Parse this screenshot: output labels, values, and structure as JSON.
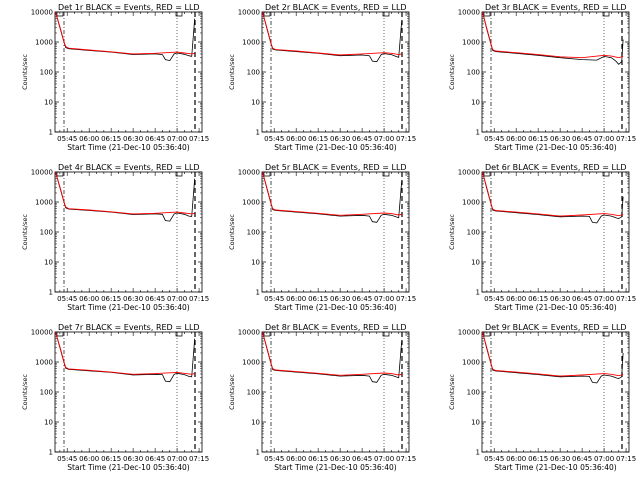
{
  "chart_data": [
    {
      "type": "line",
      "title": "Det 1r BLACK = Events, RED = LLD",
      "ylabel": "Counts/sec",
      "xlabel": "Start Time (21-Dec-10 05:36:40)",
      "yscale": "log",
      "ylim": [
        1,
        10000
      ],
      "xticklabels": [
        "05:45",
        "06:00",
        "06:15",
        "06:30",
        "06:45",
        "07:00",
        "07:15"
      ],
      "yticklabels": [
        "1",
        "10",
        "100",
        "1000",
        "10000"
      ],
      "series": [
        {
          "color": "#000000",
          "x": [
            "05:37",
            "05:40",
            "05:43",
            "05:44",
            "05:46",
            "06:00",
            "06:15",
            "06:30",
            "06:45",
            "06:50",
            "06:52",
            "06:55",
            "06:58",
            "07:00",
            "07:05",
            "07:08",
            "07:10",
            "07:12"
          ],
          "y": [
            10000,
            3000,
            900,
            650,
            600,
            520,
            460,
            380,
            400,
            380,
            260,
            240,
            400,
            430,
            390,
            350,
            330,
            6000
          ]
        },
        {
          "color": "#ff0000",
          "x": [
            "05:37",
            "05:40",
            "05:43",
            "05:44",
            "05:46",
            "06:00",
            "06:15",
            "06:30",
            "06:45",
            "07:00",
            "07:05",
            "07:10",
            "07:12"
          ],
          "y": [
            10000,
            3200,
            950,
            700,
            620,
            540,
            470,
            400,
            420,
            460,
            430,
            400,
            420
          ]
        }
      ]
    },
    {
      "type": "line",
      "title": "Det 2r BLACK = Events, RED = LLD",
      "ylabel": "Counts/sec",
      "xlabel": "Start Time (21-Dec-10 05:36:40)",
      "yscale": "log",
      "ylim": [
        1,
        10000
      ],
      "xticklabels": [
        "05:45",
        "06:00",
        "06:15",
        "06:30",
        "06:45",
        "07:00",
        "07:15"
      ],
      "yticklabels": [
        "1",
        "10",
        "100",
        "1000",
        "10000"
      ],
      "series": [
        {
          "color": "#000000",
          "x": [
            "05:37",
            "05:40",
            "05:43",
            "05:44",
            "05:46",
            "06:00",
            "06:15",
            "06:30",
            "06:45",
            "06:50",
            "06:52",
            "06:55",
            "06:58",
            "07:00",
            "07:05",
            "07:08",
            "07:10",
            "07:12"
          ],
          "y": [
            10000,
            2800,
            800,
            580,
            540,
            480,
            420,
            350,
            370,
            350,
            230,
            220,
            380,
            410,
            380,
            330,
            310,
            5000
          ]
        },
        {
          "color": "#ff0000",
          "x": [
            "05:37",
            "05:40",
            "05:43",
            "05:44",
            "05:46",
            "06:00",
            "06:15",
            "06:30",
            "06:45",
            "07:00",
            "07:05",
            "07:10",
            "07:12"
          ],
          "y": [
            10000,
            3000,
            850,
            620,
            560,
            500,
            430,
            370,
            400,
            440,
            420,
            380,
            400
          ]
        }
      ]
    },
    {
      "type": "line",
      "title": "Det 3r BLACK = Events, RED = LLD",
      "ylabel": "Counts/sec",
      "xlabel": "Start Time (21-Dec-10 05:36:40)",
      "yscale": "log",
      "ylim": [
        1,
        10000
      ],
      "xticklabels": [
        "05:45",
        "06:00",
        "06:15",
        "06:30",
        "06:45",
        "07:00",
        "07:15"
      ],
      "yticklabels": [
        "1",
        "10",
        "100",
        "1000",
        "10000"
      ],
      "series": [
        {
          "color": "#000000",
          "x": [
            "05:37",
            "05:40",
            "05:43",
            "05:44",
            "05:46",
            "06:00",
            "06:15",
            "06:30",
            "06:45",
            "06:55",
            "07:00",
            "07:05",
            "07:08",
            "07:10",
            "07:12",
            "07:13"
          ],
          "y": [
            10000,
            2600,
            750,
            520,
            480,
            420,
            360,
            300,
            260,
            250,
            330,
            300,
            230,
            180,
            220,
            1200
          ]
        },
        {
          "color": "#ff0000",
          "x": [
            "05:37",
            "05:40",
            "05:43",
            "05:44",
            "05:46",
            "06:00",
            "06:15",
            "06:30",
            "06:45",
            "07:00",
            "07:05",
            "07:10",
            "07:13"
          ],
          "y": [
            10000,
            2800,
            800,
            560,
            500,
            440,
            380,
            320,
            300,
            360,
            340,
            300,
            330
          ]
        }
      ]
    },
    {
      "type": "line",
      "title": "Det 4r BLACK = Events, RED = LLD",
      "ylabel": "Counts/sec",
      "xlabel": "Start Time (21-Dec-10 05:36:40)",
      "yscale": "log",
      "ylim": [
        1,
        10000
      ],
      "xticklabels": [
        "05:45",
        "06:00",
        "06:15",
        "06:30",
        "06:45",
        "07:00",
        "07:15"
      ],
      "yticklabels": [
        "1",
        "10",
        "100",
        "1000",
        "10000"
      ],
      "series": [
        {
          "color": "#000000",
          "x": [
            "05:37",
            "05:40",
            "05:43",
            "05:44",
            "05:46",
            "06:00",
            "06:15",
            "06:30",
            "06:45",
            "06:50",
            "06:52",
            "06:55",
            "06:58",
            "07:00",
            "07:05",
            "07:08",
            "07:10",
            "07:12"
          ],
          "y": [
            10000,
            3000,
            900,
            640,
            580,
            520,
            460,
            380,
            400,
            390,
            240,
            230,
            400,
            430,
            390,
            340,
            330,
            6000
          ]
        },
        {
          "color": "#ff0000",
          "x": [
            "05:37",
            "05:40",
            "05:43",
            "05:44",
            "05:46",
            "06:00",
            "06:15",
            "06:30",
            "06:45",
            "07:00",
            "07:05",
            "07:10",
            "07:12"
          ],
          "y": [
            10000,
            3200,
            950,
            680,
            600,
            540,
            470,
            400,
            420,
            460,
            430,
            400,
            420
          ]
        }
      ]
    },
    {
      "type": "line",
      "title": "Det 5r BLACK = Events, RED = LLD",
      "ylabel": "Counts/sec",
      "xlabel": "Start Time (21-Dec-10 05:36:40)",
      "yscale": "log",
      "ylim": [
        1,
        10000
      ],
      "xticklabels": [
        "05:45",
        "06:00",
        "06:15",
        "06:30",
        "06:45",
        "07:00",
        "07:15"
      ],
      "yticklabels": [
        "1",
        "10",
        "100",
        "1000",
        "10000"
      ],
      "series": [
        {
          "color": "#000000",
          "x": [
            "05:37",
            "05:40",
            "05:43",
            "05:44",
            "05:46",
            "06:00",
            "06:15",
            "06:30",
            "06:45",
            "06:50",
            "06:52",
            "06:55",
            "06:58",
            "07:00",
            "07:05",
            "07:08",
            "07:10",
            "07:12"
          ],
          "y": [
            10000,
            2800,
            800,
            560,
            520,
            460,
            400,
            340,
            360,
            340,
            220,
            210,
            360,
            390,
            360,
            320,
            300,
            5000
          ]
        },
        {
          "color": "#ff0000",
          "x": [
            "05:37",
            "05:40",
            "05:43",
            "05:44",
            "05:46",
            "06:00",
            "06:15",
            "06:30",
            "06:45",
            "07:00",
            "07:05",
            "07:10",
            "07:12"
          ],
          "y": [
            10000,
            3000,
            850,
            600,
            540,
            480,
            420,
            360,
            390,
            430,
            410,
            370,
            390
          ]
        }
      ]
    },
    {
      "type": "line",
      "title": "Det 6r BLACK = Events, RED = LLD",
      "ylabel": "Counts/sec",
      "xlabel": "Start Time (21-Dec-10 05:36:40)",
      "yscale": "log",
      "ylim": [
        1,
        10000
      ],
      "xticklabels": [
        "05:45",
        "06:00",
        "06:15",
        "06:30",
        "06:45",
        "07:00",
        "07:15"
      ],
      "yticklabels": [
        "1",
        "10",
        "100",
        "1000",
        "10000"
      ],
      "series": [
        {
          "color": "#000000",
          "x": [
            "05:37",
            "05:40",
            "05:43",
            "05:44",
            "05:46",
            "06:00",
            "06:15",
            "06:30",
            "06:45",
            "06:50",
            "06:52",
            "06:55",
            "06:58",
            "07:00",
            "07:05",
            "07:08",
            "07:10",
            "07:12",
            "07:13"
          ],
          "y": [
            10000,
            2700,
            780,
            540,
            500,
            440,
            380,
            320,
            340,
            330,
            210,
            200,
            340,
            370,
            340,
            300,
            280,
            320,
            1500
          ]
        },
        {
          "color": "#ff0000",
          "x": [
            "05:37",
            "05:40",
            "05:43",
            "05:44",
            "05:46",
            "06:00",
            "06:15",
            "06:30",
            "06:45",
            "07:00",
            "07:05",
            "07:10",
            "07:13"
          ],
          "y": [
            10000,
            2900,
            820,
            580,
            520,
            460,
            400,
            340,
            370,
            410,
            390,
            350,
            380
          ]
        }
      ]
    },
    {
      "type": "line",
      "title": "Det 7r BLACK = Events, RED = LLD",
      "ylabel": "Counts/sec",
      "xlabel": "Start Time (21-Dec-10 05:36:40)",
      "yscale": "log",
      "ylim": [
        1,
        10000
      ],
      "xticklabels": [
        "05:45",
        "06:00",
        "06:15",
        "06:30",
        "06:45",
        "07:00",
        "07:15"
      ],
      "yticklabels": [
        "1",
        "10",
        "100",
        "1000",
        "10000"
      ],
      "series": [
        {
          "color": "#000000",
          "x": [
            "05:37",
            "05:40",
            "05:43",
            "05:44",
            "05:46",
            "06:00",
            "06:15",
            "06:30",
            "06:45",
            "06:50",
            "06:52",
            "06:55",
            "06:58",
            "07:00",
            "07:05",
            "07:08",
            "07:10",
            "07:12"
          ],
          "y": [
            10000,
            3000,
            880,
            620,
            570,
            510,
            450,
            370,
            390,
            380,
            230,
            220,
            390,
            420,
            380,
            330,
            320,
            6000
          ]
        },
        {
          "color": "#ff0000",
          "x": [
            "05:37",
            "05:40",
            "05:43",
            "05:44",
            "05:46",
            "06:00",
            "06:15",
            "06:30",
            "06:45",
            "07:00",
            "07:05",
            "07:10",
            "07:12"
          ],
          "y": [
            10000,
            3200,
            930,
            660,
            590,
            530,
            460,
            390,
            410,
            450,
            420,
            390,
            410
          ]
        }
      ]
    },
    {
      "type": "line",
      "title": "Det 8r BLACK = Events, RED = LLD",
      "ylabel": "Counts/sec",
      "xlabel": "Start Time (21-Dec-10 05:36:40)",
      "yscale": "log",
      "ylim": [
        1,
        10000
      ],
      "xticklabels": [
        "05:45",
        "06:00",
        "06:15",
        "06:30",
        "06:45",
        "07:00",
        "07:15"
      ],
      "yticklabels": [
        "1",
        "10",
        "100",
        "1000",
        "10000"
      ],
      "series": [
        {
          "color": "#000000",
          "x": [
            "05:37",
            "05:40",
            "05:43",
            "05:44",
            "05:46",
            "06:00",
            "06:15",
            "06:30",
            "06:45",
            "06:50",
            "06:52",
            "06:55",
            "06:58",
            "07:00",
            "07:05",
            "07:08",
            "07:10",
            "07:12"
          ],
          "y": [
            10000,
            2800,
            800,
            560,
            520,
            460,
            400,
            340,
            360,
            340,
            220,
            210,
            360,
            390,
            360,
            320,
            300,
            5000
          ]
        },
        {
          "color": "#ff0000",
          "x": [
            "05:37",
            "05:40",
            "05:43",
            "05:44",
            "05:46",
            "06:00",
            "06:15",
            "06:30",
            "06:45",
            "07:00",
            "07:05",
            "07:10",
            "07:12"
          ],
          "y": [
            10000,
            3000,
            850,
            600,
            540,
            480,
            420,
            360,
            390,
            430,
            410,
            370,
            390
          ]
        }
      ]
    },
    {
      "type": "line",
      "title": "Det 9r BLACK = Events, RED = LLD",
      "ylabel": "Counts/sec",
      "xlabel": "Start Time (21-Dec-10 05:36:40)",
      "yscale": "log",
      "ylim": [
        1,
        10000
      ],
      "xticklabels": [
        "05:45",
        "06:00",
        "06:15",
        "06:30",
        "06:45",
        "07:00",
        "07:15"
      ],
      "yticklabels": [
        "1",
        "10",
        "100",
        "1000",
        "10000"
      ],
      "series": [
        {
          "color": "#000000",
          "x": [
            "05:37",
            "05:40",
            "05:43",
            "05:44",
            "05:46",
            "06:00",
            "06:15",
            "06:30",
            "06:45",
            "06:50",
            "06:52",
            "06:55",
            "06:58",
            "07:00",
            "07:05",
            "07:08",
            "07:10",
            "07:12",
            "07:13"
          ],
          "y": [
            10000,
            2700,
            780,
            540,
            500,
            440,
            380,
            320,
            340,
            330,
            210,
            200,
            340,
            370,
            340,
            300,
            280,
            320,
            2000
          ]
        },
        {
          "color": "#ff0000",
          "x": [
            "05:37",
            "05:40",
            "05:43",
            "05:44",
            "05:46",
            "06:00",
            "06:15",
            "06:30",
            "06:45",
            "07:00",
            "07:05",
            "07:10",
            "07:13"
          ],
          "y": [
            10000,
            2900,
            820,
            580,
            520,
            460,
            400,
            340,
            370,
            410,
            390,
            350,
            380
          ]
        }
      ]
    }
  ]
}
